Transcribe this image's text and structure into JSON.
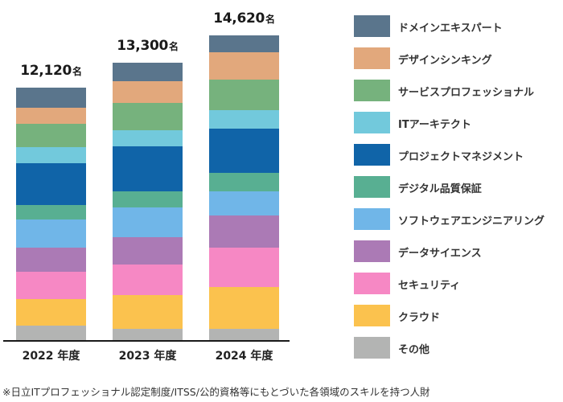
{
  "chart_data": {
    "type": "bar",
    "stacked": true,
    "title": "",
    "xlabel": "",
    "ylabel": "",
    "unit": "名",
    "categories": [
      "2022 年度",
      "2023 年度",
      "2024 年度"
    ],
    "totals": [
      "12,120",
      "13,300",
      "14,620"
    ],
    "total_values": [
      12120,
      13300,
      14620
    ],
    "series": [
      {
        "name": "その他",
        "color": "#b3b4b3",
        "values": [
          690,
          540,
          540
        ]
      },
      {
        "name": "クラウド",
        "color": "#fbc24e",
        "values": [
          1270,
          1620,
          2000
        ]
      },
      {
        "name": "セキュリティ",
        "color": "#f688c4",
        "values": [
          1310,
          1460,
          1890
        ]
      },
      {
        "name": "データサイエンス",
        "color": "#ab7ab5",
        "values": [
          1160,
          1310,
          1540
        ]
      },
      {
        "name": "ソフトウェアエンジニアリング",
        "color": "#70b6e8",
        "values": [
          1350,
          1430,
          1190
        ]
      },
      {
        "name": "デジタル品質保証",
        "color": "#58af92",
        "values": [
          700,
          770,
          880
        ]
      },
      {
        "name": "プロジェクトマネジメント",
        "color": "#1064a8",
        "values": [
          2010,
          2160,
          2120
        ]
      },
      {
        "name": "ITアーキテクト",
        "color": "#72c9dc",
        "values": [
          770,
          770,
          880
        ]
      },
      {
        "name": "サービスプロフェッショナル",
        "color": "#76b27d",
        "values": [
          1120,
          1310,
          1460
        ]
      },
      {
        "name": "デザインシンキング",
        "color": "#e2a87c",
        "values": [
          770,
          1080,
          1310
        ]
      },
      {
        "name": "ドメインエキスパート",
        "color": "#5a758c",
        "values": [
          970,
          850,
          810
        ]
      }
    ],
    "legend_position": "right",
    "grid": false
  },
  "legend": {
    "items": [
      {
        "label": "ドメインエキスパート",
        "color": "#5a758c"
      },
      {
        "label": "デザインシンキング",
        "color": "#e2a87c"
      },
      {
        "label": "サービスプロフェッショナル",
        "color": "#76b27d"
      },
      {
        "label": "ITアーキテクト",
        "color": "#72c9dc"
      },
      {
        "label": "プロジェクトマネジメント",
        "color": "#1064a8"
      },
      {
        "label": "デジタル品質保証",
        "color": "#58af92"
      },
      {
        "label": "ソフトウェアエンジニアリング",
        "color": "#70b6e8"
      },
      {
        "label": "データサイエンス",
        "color": "#ab7ab5"
      },
      {
        "label": "セキュリティ",
        "color": "#f688c4"
      },
      {
        "label": "クラウド",
        "color": "#fbc24e"
      },
      {
        "label": "その他",
        "color": "#b3b4b3"
      }
    ]
  },
  "footnote": "※日立ITプロフェッショナル認定制度/ITSS/公的資格等にもとづいた各領域のスキルを持つ人財"
}
